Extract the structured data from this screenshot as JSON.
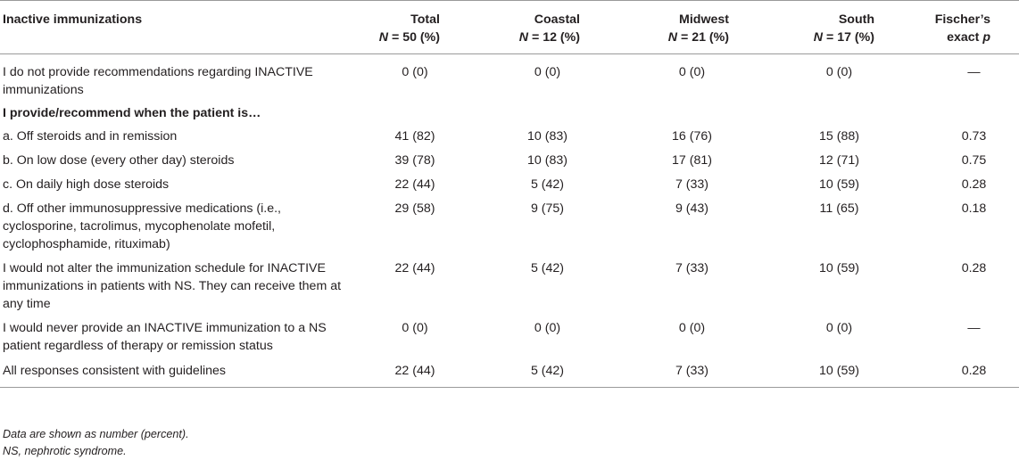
{
  "table": {
    "columns": [
      {
        "title": "Inactive immunizations",
        "sub": ""
      },
      {
        "title": "Total",
        "sub": "N = 50 (%)"
      },
      {
        "title": "Coastal",
        "sub": "N = 12 (%)"
      },
      {
        "title": "Midwest",
        "sub": "N = 21 (%)"
      },
      {
        "title": "South",
        "sub": "N = 17 (%)"
      },
      {
        "title": "Fischer’s",
        "sub": "exact p"
      }
    ],
    "rows": [
      {
        "label": "I do not provide recommendations regarding INACTIVE immunizations",
        "total": "0 (0)",
        "coastal": "0 (0)",
        "midwest": "0 (0)",
        "south": "0 (0)",
        "p": "—"
      },
      {
        "label": "I provide/recommend when the patient is…"
      },
      {
        "label": "a. Off steroids and in remission",
        "total": "41 (82)",
        "coastal": "10 (83)",
        "midwest": "16 (76)",
        "south": "15 (88)",
        "p": "0.73"
      },
      {
        "label": "b. On low dose (every other day) steroids",
        "total": "39 (78)",
        "coastal": "10 (83)",
        "midwest": "17 (81)",
        "south": "12 (71)",
        "p": "0.75"
      },
      {
        "label": "c. On daily high dose steroids",
        "total": "22 (44)",
        "coastal": "5 (42)",
        "midwest": "7 (33)",
        "south": "10 (59)",
        "p": "0.28"
      },
      {
        "label": "d. Off other immunosuppressive medications (i.e., cyclosporine, tacrolimus, mycophenolate mofetil, cyclophosphamide, rituximab)",
        "total": "29 (58)",
        "coastal": "9 (75)",
        "midwest": "9 (43)",
        "south": "11 (65)",
        "p": "0.18"
      },
      {
        "label": "I would not alter the immunization schedule for INACTIVE immunizations in patients with NS. They can receive them at any time",
        "total": "22 (44)",
        "coastal": "5 (42)",
        "midwest": "7 (33)",
        "south": "10 (59)",
        "p": "0.28"
      },
      {
        "label": "I would never provide an INACTIVE immunization to a NS patient regardless of therapy or remission status",
        "total": "0 (0)",
        "coastal": "0 (0)",
        "midwest": "0 (0)",
        "south": "0 (0)",
        "p": "—"
      },
      {
        "label": "All responses consistent with guidelines",
        "total": "22 (44)",
        "coastal": "5 (42)",
        "midwest": "7 (33)",
        "south": "10 (59)",
        "p": "0.28"
      }
    ]
  },
  "footnotes": {
    "note1": "Data are shown as number (percent).",
    "note2": "NS, nephrotic syndrome."
  }
}
